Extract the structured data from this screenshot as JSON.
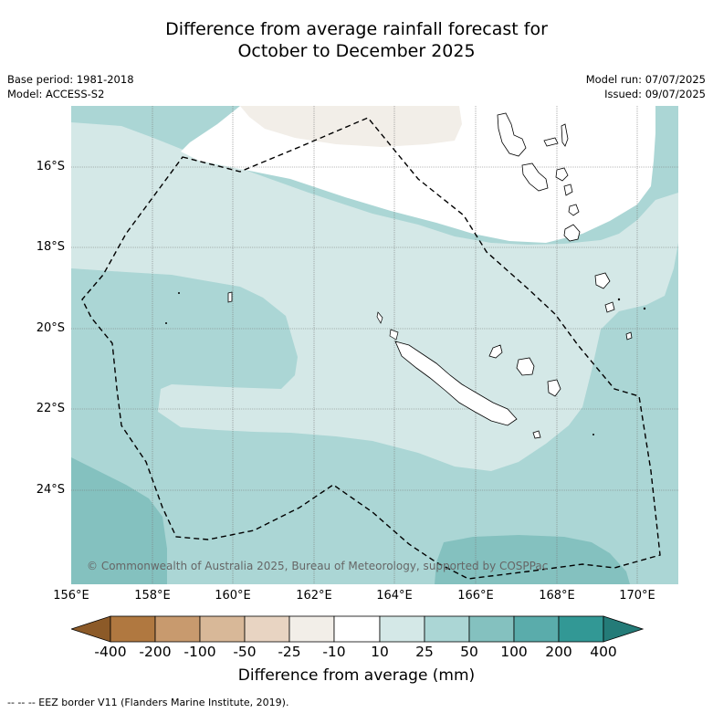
{
  "title": {
    "line1": "Difference from average rainfall forecast for",
    "line2": "October to December 2025"
  },
  "meta": {
    "base_period": "Base period: 1981-2018",
    "model": "Model: ACCESS-S2",
    "model_run": "Model run: 07/07/2025",
    "issued": "Issued: 09/07/2025"
  },
  "map": {
    "y_ticks": [
      "16°S",
      "18°S",
      "20°S",
      "22°S",
      "24°S"
    ],
    "x_ticks": [
      "156°E",
      "158°E",
      "160°E",
      "162°E",
      "164°E",
      "166°E",
      "168°E",
      "170°E"
    ],
    "copyright": "© Commonwealth of Australia 2025, Bureau of Meteorology, supported by COSPPac"
  },
  "colorbar": {
    "title": "Difference from average (mm)",
    "ticks": [
      "-400",
      "-200",
      "-100",
      "-50",
      "-25",
      "-10",
      "10",
      "25",
      "50",
      "100",
      "200",
      "400"
    ],
    "colors": {
      "lt_-400": "#8c5a28",
      "-400_-200": "#b07840",
      "-200_-100": "#c89a6e",
      "-100_-50": "#d8b898",
      "-50_-25": "#e8d4c2",
      "-25_-10": "#f2eee8",
      "-10_10": "#ffffff",
      "10_25": "#d4e8e7",
      "25_50": "#abd6d5",
      "50_100": "#84c1bf",
      "100_200": "#5aacab",
      "200_400": "#329895",
      "gt_400": "#247b78"
    }
  },
  "footnote": "--  --  -- EEZ border V11 (Flanders Marine Institute, 2019)."
}
